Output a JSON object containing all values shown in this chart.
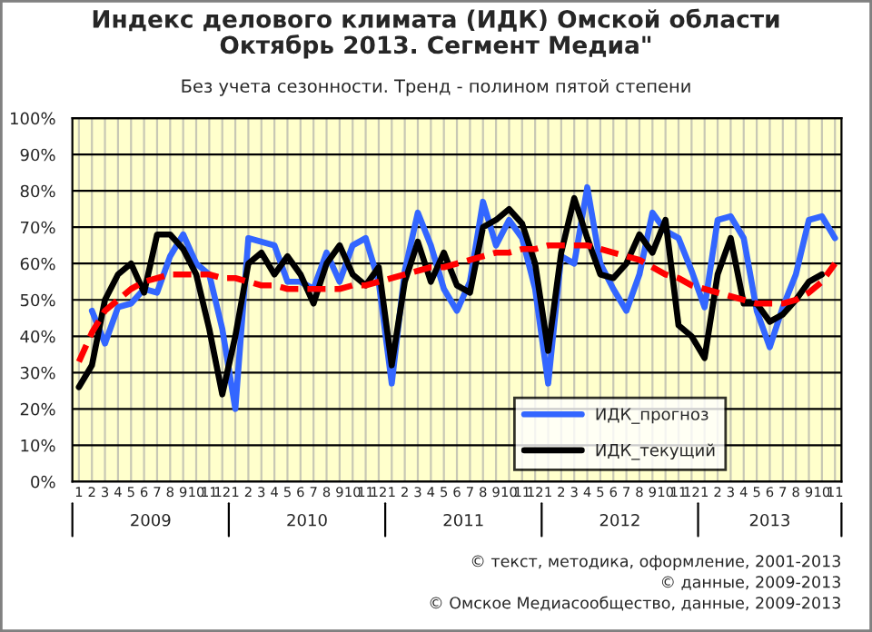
{
  "chart_data": {
    "type": "line",
    "title": "Индекс делового климата (ИДК) Омской области\nОктябрь 2013. Сегмент Медиа\"",
    "subtitle": "Без учета сезонности. Тренд - полином пятой степени",
    "categories": [
      "1",
      "2",
      "3",
      "4",
      "5",
      "6",
      "7",
      "8",
      "9",
      "10",
      "11",
      "12",
      "1",
      "2",
      "3",
      "4",
      "5",
      "6",
      "7",
      "8",
      "9",
      "10",
      "11",
      "12",
      "1",
      "2",
      "3",
      "4",
      "5",
      "6",
      "7",
      "8",
      "9",
      "10",
      "11",
      "12",
      "1",
      "2",
      "3",
      "4",
      "5",
      "6",
      "7",
      "8",
      "9",
      "10",
      "11",
      "12",
      "1",
      "2",
      "3",
      "4",
      "5",
      "6",
      "7",
      "8",
      "9",
      "10",
      "11"
    ],
    "series": [
      {
        "name": "ИДК_прогноз",
        "color": "#3366ff",
        "values": [
          null,
          47,
          38,
          48,
          49,
          53,
          52,
          62,
          68,
          60,
          57,
          42,
          20,
          67,
          66,
          65,
          55,
          55,
          53,
          63,
          55,
          65,
          67,
          55,
          27,
          58,
          74,
          65,
          53,
          47,
          55,
          77,
          65,
          72,
          67,
          53,
          27,
          62,
          60,
          81,
          60,
          53,
          47,
          57,
          74,
          69,
          67,
          58,
          48,
          72,
          73,
          67,
          47,
          37,
          48,
          57,
          72,
          73,
          67
        ]
      },
      {
        "name": "ИДК_текущий",
        "color": "#000000",
        "values": [
          26,
          32,
          50,
          57,
          60,
          52,
          68,
          68,
          64,
          57,
          42,
          24,
          40,
          60,
          63,
          57,
          62,
          57,
          49,
          60,
          65,
          57,
          54,
          59,
          32,
          55,
          66,
          55,
          63,
          54,
          52,
          70,
          72,
          75,
          71,
          60,
          36,
          63,
          78,
          67,
          57,
          56,
          60,
          68,
          63,
          72,
          43,
          40,
          34,
          57,
          67,
          49,
          49,
          44,
          46,
          50,
          55,
          57,
          null
        ]
      },
      {
        "color": "#ff0000",
        "line_style": "dashed",
        "values": [
          33,
          41,
          47,
          50,
          53,
          55,
          56,
          57,
          57,
          57,
          57,
          56,
          56,
          55,
          54,
          54,
          53,
          53,
          53,
          53,
          53,
          54,
          54,
          55,
          56,
          57,
          58,
          59,
          59,
          60,
          61,
          62,
          63,
          63,
          64,
          64,
          65,
          65,
          65,
          65,
          64,
          63,
          62,
          61,
          59,
          57,
          56,
          54,
          53,
          52,
          51,
          50,
          49,
          49,
          49,
          50,
          52,
          55,
          60
        ]
      }
    ],
    "ylim": [
      0,
      100
    ],
    "yticks": [
      {
        "value": 0,
        "label": "0%"
      },
      {
        "value": 10,
        "label": "10%"
      },
      {
        "value": 20,
        "label": "20%"
      },
      {
        "value": 30,
        "label": "30%"
      },
      {
        "value": 40,
        "label": "40%"
      },
      {
        "value": 50,
        "label": "50%"
      },
      {
        "value": 60,
        "label": "60%"
      },
      {
        "value": 70,
        "label": "70%"
      },
      {
        "value": 80,
        "label": "80%"
      },
      {
        "value": 90,
        "label": "90%"
      },
      {
        "value": 100,
        "label": "100%"
      }
    ],
    "grid": true,
    "legend": "bottom right",
    "annotations": [
      "2009",
      "2010",
      "2011",
      "2012",
      "2013",
      "© текст, методика, оформление, 2001-2013",
      "© данные, 2009-2013",
      "© Омское Медиасообщество, данные, 2009-2013"
    ]
  }
}
